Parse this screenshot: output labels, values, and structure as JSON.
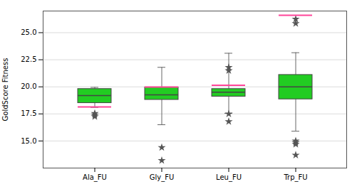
{
  "chart_data": {
    "type": "box",
    "ylabel": "GoldScore Fitness",
    "categories": [
      "Ala_FU",
      "Gly_FU",
      "Leu_FU",
      "Trp_FU"
    ],
    "whisker_low": [
      18.1,
      16.5,
      17.55,
      15.9
    ],
    "q1": [
      18.5,
      18.8,
      19.1,
      18.85
    ],
    "median": [
      19.2,
      19.25,
      19.5,
      20.0
    ],
    "q3": [
      19.8,
      19.95,
      19.8,
      21.1
    ],
    "whisker_high": [
      19.95,
      21.8,
      23.1,
      23.15
    ],
    "outliers": [
      [
        17.25,
        17.4,
        17.55
      ],
      [
        14.4,
        13.2
      ],
      [
        17.5,
        16.8,
        21.8,
        21.5
      ],
      [
        26.25,
        25.85,
        15.0,
        14.85,
        14.7,
        13.7
      ]
    ],
    "marker": "star",
    "color": "#22cc22",
    "selected": {
      "values": [
        18.15,
        19.98,
        20.15,
        26.6
      ],
      "color": "#ff4499"
    },
    "ylim": [
      12.5,
      27.0
    ],
    "yticks": [
      {
        "value": 15.0,
        "label": "15.0"
      },
      17.5,
      {
        "value": 20.0,
        "label": "20.0"
      },
      22.5,
      {
        "value": 25.0,
        "label": "25.0"
      }
    ],
    "grid": true
  }
}
